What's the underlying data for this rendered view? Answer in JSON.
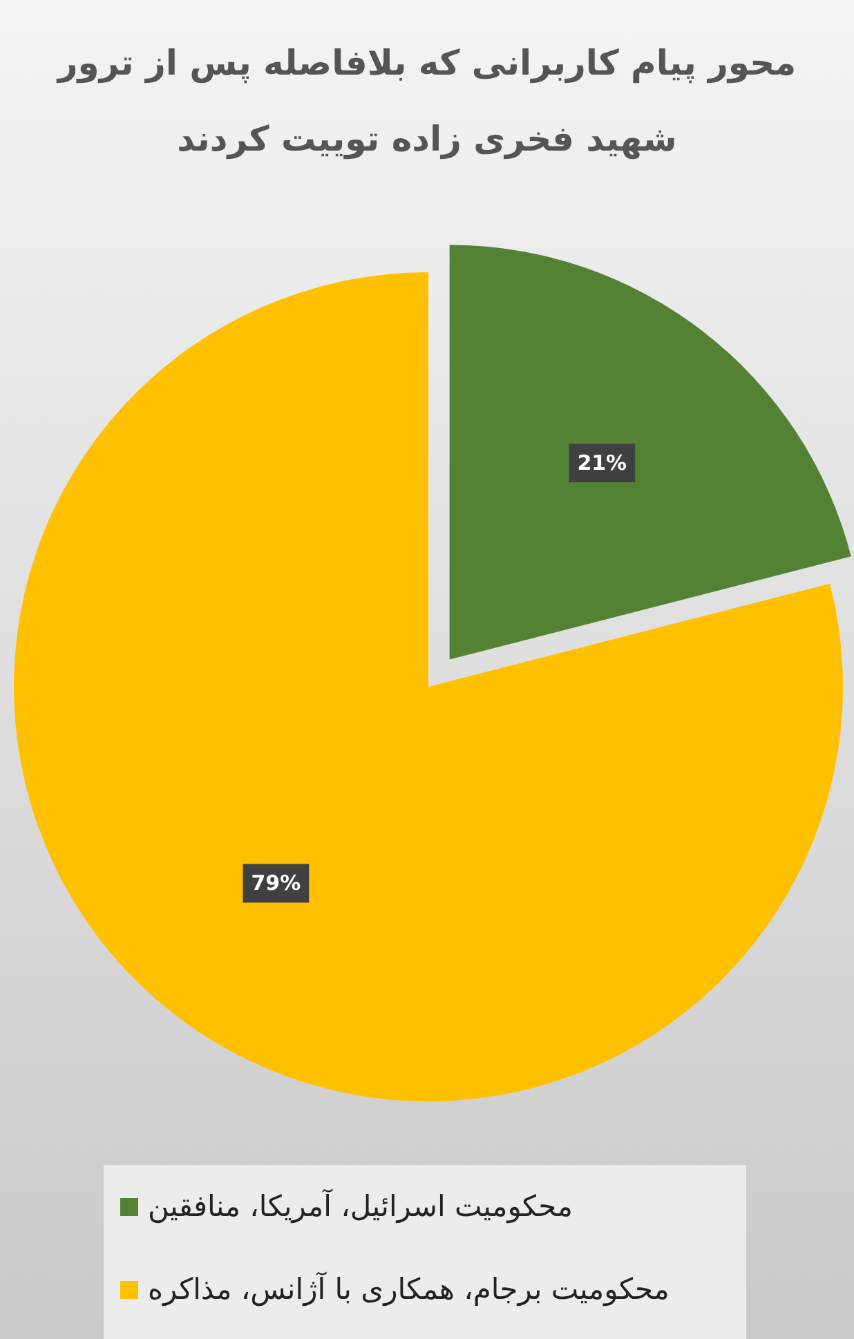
{
  "chart_data": {
    "type": "pie",
    "title": "محور پیام کاربرانی که بلافاصله پس از ترور شهید فخری زاده توییت کردند",
    "categories": [
      "محکومیت اسرائیل، آمریکا، منافقین",
      "محکومیت برجام، همکاری با آژانس، مذاکره"
    ],
    "values": [
      21,
      79
    ],
    "colors": [
      "#548235",
      "#ffc000"
    ],
    "value_labels": [
      "21%",
      "79%"
    ],
    "legend": "bottom"
  }
}
